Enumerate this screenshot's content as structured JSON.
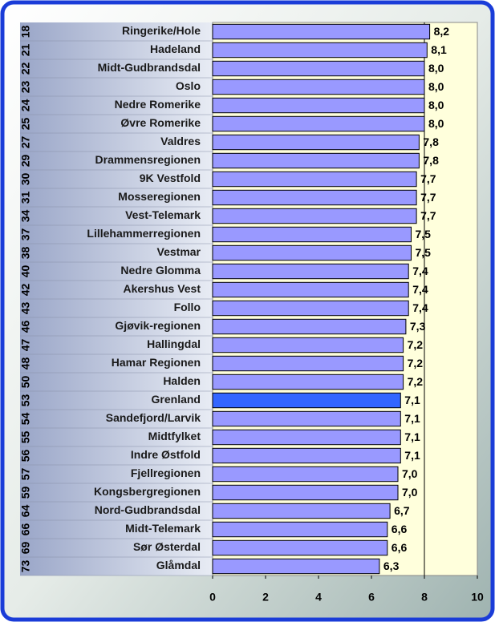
{
  "chart_data": {
    "type": "hbar",
    "categories": [
      "Ringerike/Hole",
      "Hadeland",
      "Midt-Gudbrandsdal",
      "Oslo",
      "Nedre Romerike",
      "Øvre Romerike",
      "Valdres",
      "Drammensregionen",
      "9K Vestfold",
      "Mosseregionen",
      "Vest-Telemark",
      "Lillehammerregionen",
      "Vestmar",
      "Nedre Glomma",
      "Akershus Vest",
      "Follo",
      "Gjøvik-regionen",
      "Hallingdal",
      "Hamar Regionen",
      "Halden",
      "Grenland",
      "Sandefjord/Larvik",
      "Midtfylket",
      "Indre Østfold",
      "Fjellregionen",
      "Kongsbergregionen",
      "Nord-Gudbrandsdal",
      "Midt-Telemark",
      "Sør Østerdal",
      "Glåmdal"
    ],
    "codes": [
      "18",
      "21",
      "22",
      "23",
      "24",
      "25",
      "27",
      "29",
      "30",
      "31",
      "34",
      "37",
      "38",
      "40",
      "42",
      "43",
      "46",
      "47",
      "48",
      "50",
      "53",
      "54",
      "55",
      "56",
      "57",
      "59",
      "64",
      "66",
      "69",
      "73"
    ],
    "values": [
      8.2,
      8.1,
      8.0,
      8.0,
      8.0,
      8.0,
      7.8,
      7.8,
      7.7,
      7.7,
      7.7,
      7.5,
      7.5,
      7.4,
      7.4,
      7.4,
      7.3,
      7.2,
      7.2,
      7.2,
      7.1,
      7.1,
      7.1,
      7.1,
      7.0,
      7.0,
      6.7,
      6.6,
      6.6,
      6.3
    ],
    "value_labels": [
      "8,2",
      "8,1",
      "8,0",
      "8,0",
      "8,0",
      "8,0",
      "7,8",
      "7,8",
      "7,7",
      "7,7",
      "7,7",
      "7,5",
      "7,5",
      "7,4",
      "7,4",
      "7,4",
      "7,3",
      "7,2",
      "7,2",
      "7,2",
      "7,1",
      "7,1",
      "7,1",
      "7,1",
      "7,0",
      "7,0",
      "6,7",
      "6,6",
      "6,6",
      "6,3"
    ],
    "color": "#9999ff",
    "highlight_color": "#3366ff",
    "highlight": "Grenland",
    "xlim": [
      0,
      10
    ],
    "xticks": [
      0,
      2,
      4,
      6,
      8,
      10
    ],
    "grid_at": 8
  }
}
